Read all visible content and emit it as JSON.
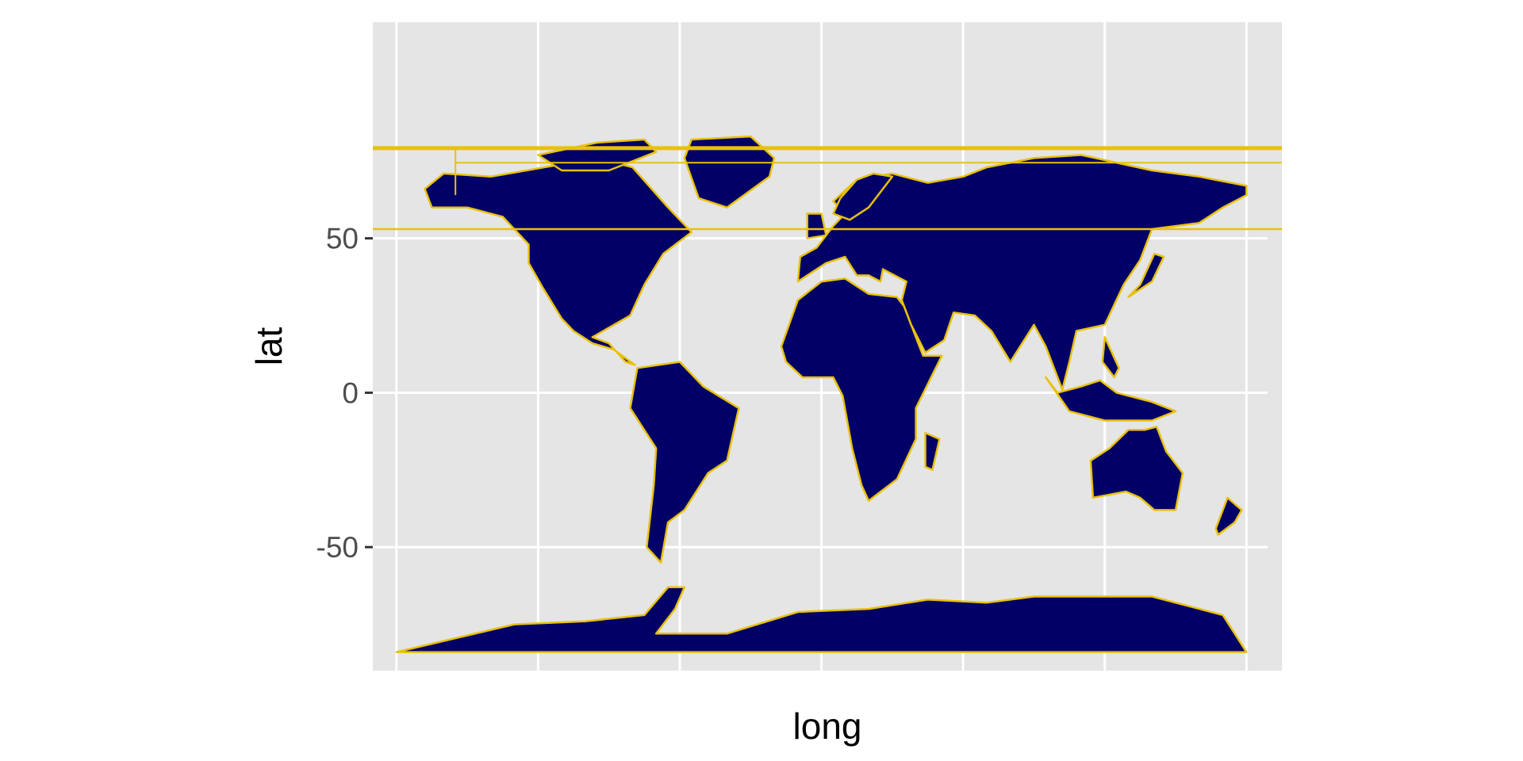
{
  "chart_data": {
    "type": "map",
    "title": "",
    "xlabel": "long",
    "ylabel": "lat",
    "xlim": [
      -190,
      195
    ],
    "ylim": [
      -90,
      120
    ],
    "projection": "mercator",
    "x_gridlines": [
      -180,
      -120,
      -60,
      0,
      60,
      120,
      180
    ],
    "y_ticks": [
      {
        "value": 50,
        "label": "50"
      },
      {
        "value": 0,
        "label": "0"
      },
      {
        "value": -50,
        "label": "-50"
      }
    ],
    "grid": true,
    "panel_background": "#e5e5e5",
    "gridline_color": "#ffffff",
    "land_fill": "#000066",
    "border_color": "#e8c10e",
    "regions": [
      {
        "name": "North America",
        "points": [
          [
            -168,
            66
          ],
          [
            -160,
            71
          ],
          [
            -140,
            70
          ],
          [
            -125,
            72
          ],
          [
            -95,
            76
          ],
          [
            -80,
            73
          ],
          [
            -65,
            60
          ],
          [
            -55,
            52
          ],
          [
            -67,
            45
          ],
          [
            -75,
            35
          ],
          [
            -81,
            25
          ],
          [
            -97,
            18
          ],
          [
            -90,
            16
          ],
          [
            -83,
            10
          ],
          [
            -79,
            9
          ],
          [
            -88,
            14
          ],
          [
            -97,
            16
          ],
          [
            -105,
            20
          ],
          [
            -110,
            24
          ],
          [
            -118,
            34
          ],
          [
            -124,
            42
          ],
          [
            -124,
            48
          ],
          [
            -135,
            57
          ],
          [
            -150,
            60
          ],
          [
            -165,
            60
          ]
        ]
      },
      {
        "name": "Greenland",
        "points": [
          [
            -55,
            82
          ],
          [
            -30,
            83
          ],
          [
            -20,
            76
          ],
          [
            -22,
            70
          ],
          [
            -40,
            60
          ],
          [
            -52,
            63
          ],
          [
            -58,
            76
          ]
        ]
      },
      {
        "name": "Canadian Arctic",
        "points": [
          [
            -120,
            77
          ],
          [
            -95,
            81
          ],
          [
            -75,
            82
          ],
          [
            -70,
            78
          ],
          [
            -90,
            72
          ],
          [
            -110,
            72
          ]
        ]
      },
      {
        "name": "South America",
        "points": [
          [
            -78,
            8
          ],
          [
            -60,
            10
          ],
          [
            -50,
            2
          ],
          [
            -35,
            -5
          ],
          [
            -40,
            -22
          ],
          [
            -48,
            -26
          ],
          [
            -58,
            -38
          ],
          [
            -65,
            -42
          ],
          [
            -68,
            -55
          ],
          [
            -74,
            -50
          ],
          [
            -71,
            -30
          ],
          [
            -70,
            -18
          ],
          [
            -81,
            -5
          ]
        ]
      },
      {
        "name": "Africa",
        "points": [
          [
            -17,
            15
          ],
          [
            -10,
            30
          ],
          [
            0,
            36
          ],
          [
            10,
            37
          ],
          [
            20,
            32
          ],
          [
            32,
            31
          ],
          [
            35,
            28
          ],
          [
            43,
            12
          ],
          [
            51,
            12
          ],
          [
            40,
            -5
          ],
          [
            40,
            -15
          ],
          [
            32,
            -28
          ],
          [
            20,
            -35
          ],
          [
            17,
            -30
          ],
          [
            13,
            -18
          ],
          [
            9,
            -1
          ],
          [
            5,
            5
          ],
          [
            -8,
            5
          ],
          [
            -15,
            10
          ]
        ]
      },
      {
        "name": "Madagascar",
        "points": [
          [
            44,
            -13
          ],
          [
            50,
            -15
          ],
          [
            47,
            -25
          ],
          [
            44,
            -24
          ]
        ]
      },
      {
        "name": "Eurasia",
        "points": [
          [
            -10,
            36
          ],
          [
            -9,
            44
          ],
          [
            -2,
            47
          ],
          [
            5,
            54
          ],
          [
            10,
            58
          ],
          [
            5,
            62
          ],
          [
            15,
            69
          ],
          [
            30,
            71
          ],
          [
            45,
            68
          ],
          [
            60,
            70
          ],
          [
            70,
            73
          ],
          [
            90,
            76
          ],
          [
            110,
            77
          ],
          [
            140,
            72
          ],
          [
            160,
            70
          ],
          [
            180,
            67
          ],
          [
            180,
            64
          ],
          [
            170,
            60
          ],
          [
            160,
            55
          ],
          [
            140,
            53
          ],
          [
            135,
            43
          ],
          [
            128,
            35
          ],
          [
            120,
            22
          ],
          [
            108,
            20
          ],
          [
            105,
            10
          ],
          [
            102,
            1
          ],
          [
            95,
            15
          ],
          [
            90,
            22
          ],
          [
            80,
            10
          ],
          [
            72,
            20
          ],
          [
            65,
            25
          ],
          [
            56,
            26
          ],
          [
            52,
            17
          ],
          [
            44,
            13
          ],
          [
            38,
            22
          ],
          [
            34,
            30
          ],
          [
            36,
            36
          ],
          [
            26,
            40
          ],
          [
            25,
            36
          ],
          [
            20,
            38
          ],
          [
            15,
            38
          ],
          [
            10,
            44
          ],
          [
            2,
            42
          ]
        ]
      },
      {
        "name": "Scandinavia",
        "points": [
          [
            5,
            58
          ],
          [
            8,
            63
          ],
          [
            15,
            69
          ],
          [
            22,
            71
          ],
          [
            30,
            70
          ],
          [
            20,
            60
          ],
          [
            12,
            56
          ]
        ]
      },
      {
        "name": "Great Britain",
        "points": [
          [
            -6,
            50
          ],
          [
            2,
            51
          ],
          [
            0,
            58
          ],
          [
            -6,
            58
          ]
        ]
      },
      {
        "name": "Japan",
        "points": [
          [
            130,
            31
          ],
          [
            140,
            36
          ],
          [
            145,
            44
          ],
          [
            141,
            45
          ],
          [
            135,
            35
          ]
        ]
      },
      {
        "name": "Indonesia",
        "points": [
          [
            95,
            5
          ],
          [
            105,
            -6
          ],
          [
            120,
            -9
          ],
          [
            140,
            -9
          ],
          [
            150,
            -6
          ],
          [
            140,
            -3
          ],
          [
            125,
            0
          ],
          [
            118,
            4
          ],
          [
            110,
            2
          ],
          [
            100,
            0
          ]
        ]
      },
      {
        "name": "Philippines",
        "points": [
          [
            120,
            18
          ],
          [
            126,
            8
          ],
          [
            124,
            5
          ],
          [
            119,
            10
          ]
        ]
      },
      {
        "name": "Australia",
        "points": [
          [
            114,
            -22
          ],
          [
            122,
            -18
          ],
          [
            130,
            -12
          ],
          [
            137,
            -12
          ],
          [
            142,
            -11
          ],
          [
            146,
            -19
          ],
          [
            153,
            -26
          ],
          [
            150,
            -38
          ],
          [
            141,
            -38
          ],
          [
            135,
            -34
          ],
          [
            129,
            -32
          ],
          [
            115,
            -34
          ]
        ]
      },
      {
        "name": "New Zealand",
        "points": [
          [
            172,
            -34
          ],
          [
            178,
            -38
          ],
          [
            175,
            -42
          ],
          [
            168,
            -46
          ],
          [
            167,
            -44
          ]
        ]
      },
      {
        "name": "Antarctica",
        "points": [
          [
            -180,
            -84
          ],
          [
            -130,
            -75
          ],
          [
            -100,
            -74
          ],
          [
            -75,
            -72
          ],
          [
            -65,
            -63
          ],
          [
            -58,
            -63
          ],
          [
            -62,
            -70
          ],
          [
            -70,
            -78
          ],
          [
            -40,
            -78
          ],
          [
            -10,
            -71
          ],
          [
            20,
            -70
          ],
          [
            45,
            -67
          ],
          [
            70,
            -68
          ],
          [
            90,
            -66
          ],
          [
            120,
            -66
          ],
          [
            140,
            -66
          ],
          [
            160,
            -70
          ],
          [
            170,
            -72
          ],
          [
            180,
            -84
          ]
        ]
      }
    ]
  }
}
